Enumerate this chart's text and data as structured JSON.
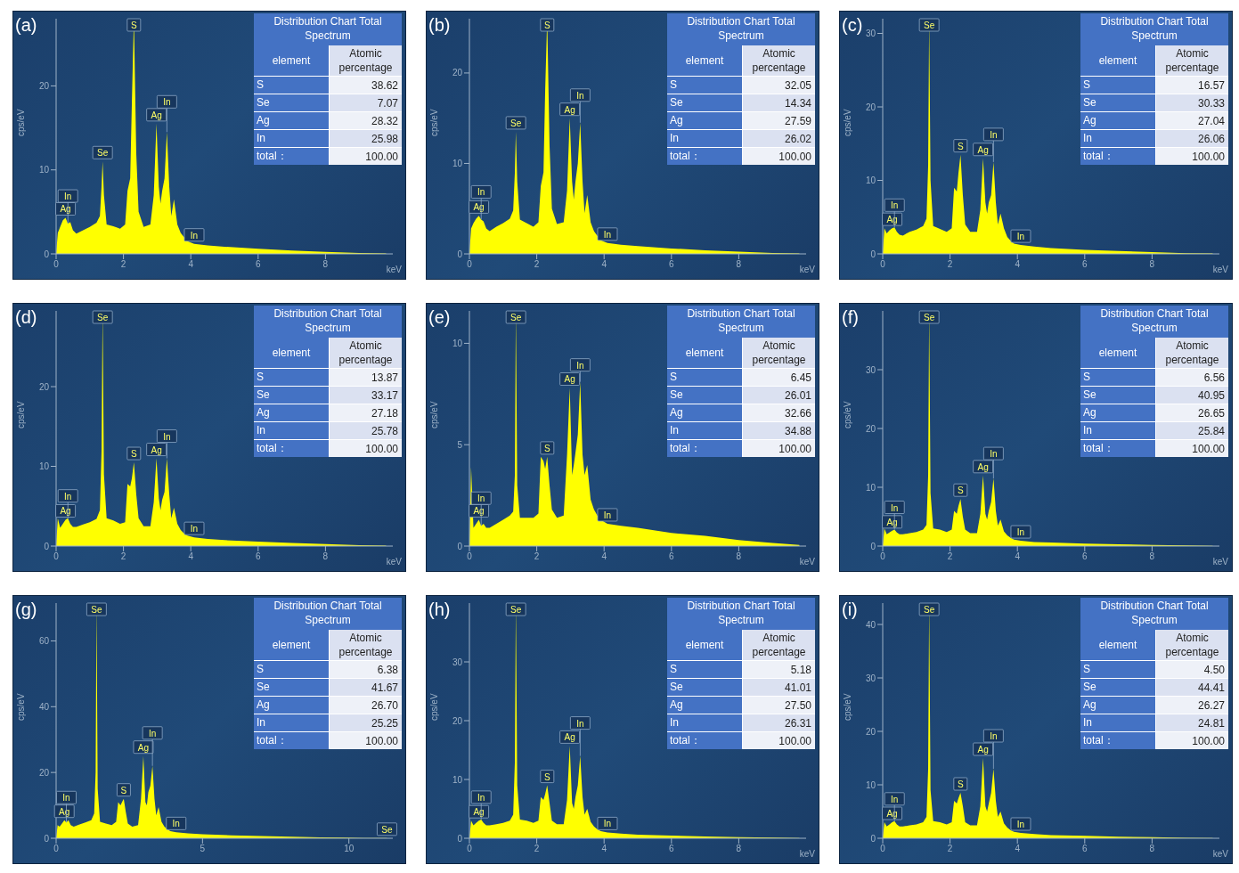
{
  "chart_data": [
    {
      "type": "area",
      "title": "(a)",
      "ylabel": "cps/eV",
      "xlabel": "keV",
      "color": "#ffff00",
      "xlim": [
        0,
        10
      ],
      "xticks": [
        0,
        2,
        4,
        6,
        8
      ],
      "ylim": [
        0,
        28
      ],
      "yticks": [
        0,
        10,
        20
      ],
      "x": [
        0,
        0.05,
        0.12,
        0.2,
        0.28,
        0.35,
        0.42,
        0.5,
        0.6,
        0.8,
        1.0,
        1.2,
        1.3,
        1.35,
        1.38,
        1.42,
        1.5,
        1.7,
        1.9,
        2.05,
        2.12,
        2.2,
        2.25,
        2.31,
        2.38,
        2.45,
        2.6,
        2.8,
        2.9,
        2.98,
        3.05,
        3.1,
        3.15,
        3.22,
        3.29,
        3.36,
        3.42,
        3.5,
        3.6,
        3.7,
        3.8,
        3.9,
        4.1,
        4.5,
        5,
        6,
        7,
        8,
        9,
        9.8
      ],
      "values": [
        0,
        2.5,
        3.2,
        4,
        4.3,
        3.6,
        3.8,
        2.8,
        2.4,
        2.8,
        3.2,
        3.7,
        4.5,
        8,
        11,
        7,
        3.5,
        3.3,
        3,
        3.5,
        7.5,
        9,
        18,
        28,
        12,
        5,
        3.2,
        3.5,
        7,
        15.5,
        8,
        6,
        7.5,
        9,
        14.5,
        8,
        4.5,
        6.5,
        3.5,
        2.5,
        2,
        1.5,
        1.2,
        1,
        0.85,
        0.6,
        0.4,
        0.25,
        0.1,
        0.05
      ],
      "annotations": [
        "Distribution Chart Total Spectrum",
        "element",
        "Atomic percentage",
        "S",
        "38.62",
        "Se",
        "7.07",
        "Ag",
        "28.32",
        "In",
        "25.98",
        "total：",
        "100.00",
        {
          "text": "Ag",
          "x": 0.28,
          "y": 4.3
        },
        {
          "text": "In",
          "x": 0.35,
          "y": 3.6
        },
        {
          "text": "Se",
          "x": 1.38,
          "y": 11
        },
        {
          "text": "S",
          "x": 2.31,
          "y": 28
        },
        {
          "text": "Ag",
          "x": 2.98,
          "y": 15.5
        },
        {
          "text": "In",
          "x": 3.29,
          "y": 14.5
        },
        {
          "text": "In",
          "x": 4.1,
          "y": 1.2
        }
      ]
    },
    {
      "type": "area",
      "title": "(b)",
      "ylabel": "cps/eV",
      "xlabel": "keV",
      "color": "#ffff00",
      "xlim": [
        0,
        10
      ],
      "xticks": [
        0,
        2,
        4,
        6,
        8
      ],
      "ylim": [
        0,
        26
      ],
      "yticks": [
        0,
        10,
        20
      ],
      "x": [
        0,
        0.05,
        0.12,
        0.2,
        0.28,
        0.35,
        0.42,
        0.5,
        0.6,
        0.8,
        1.0,
        1.2,
        1.3,
        1.35,
        1.38,
        1.42,
        1.5,
        1.7,
        1.9,
        2.05,
        2.12,
        2.2,
        2.25,
        2.31,
        2.38,
        2.45,
        2.6,
        2.8,
        2.9,
        2.98,
        3.05,
        3.1,
        3.15,
        3.22,
        3.29,
        3.36,
        3.42,
        3.5,
        3.6,
        3.7,
        3.8,
        3.9,
        4.1,
        4.5,
        5,
        6,
        7,
        8,
        9,
        9.8
      ],
      "values": [
        0,
        2.8,
        3.4,
        3.9,
        4.2,
        3.8,
        3.6,
        2.8,
        2.5,
        3,
        3.4,
        3.9,
        4.8,
        9,
        13.5,
        8,
        3.8,
        3.4,
        3,
        3.5,
        7.5,
        9,
        18,
        26,
        12,
        5,
        3.3,
        3.5,
        7,
        15,
        8,
        6,
        8,
        10,
        14.5,
        8,
        4.5,
        6.5,
        3.5,
        2.5,
        2,
        1.5,
        1.2,
        1,
        0.85,
        0.6,
        0.4,
        0.25,
        0.1,
        0.05
      ],
      "annotations": [
        "Distribution Chart Total Spectrum",
        "element",
        "Atomic percentage",
        "S",
        "32.05",
        "Se",
        "14.34",
        "Ag",
        "27.59",
        "In",
        "26.02",
        "total：",
        "100.00",
        {
          "text": "Ag",
          "x": 0.28,
          "y": 4.2
        },
        {
          "text": "In",
          "x": 0.35,
          "y": 3.8
        },
        {
          "text": "Se",
          "x": 1.38,
          "y": 13.5
        },
        {
          "text": "S",
          "x": 2.31,
          "y": 26
        },
        {
          "text": "Ag",
          "x": 2.98,
          "y": 15
        },
        {
          "text": "In",
          "x": 3.29,
          "y": 14.5
        },
        {
          "text": "In",
          "x": 4.1,
          "y": 1.2
        }
      ]
    },
    {
      "type": "area",
      "title": "(c)",
      "ylabel": "cps/eV",
      "xlabel": "keV",
      "color": "#ffff00",
      "xlim": [
        0,
        10
      ],
      "xticks": [
        0,
        2,
        4,
        6,
        8
      ],
      "ylim": [
        0,
        32
      ],
      "yticks": [
        0,
        10,
        20,
        30
      ],
      "x": [
        0,
        0.05,
        0.12,
        0.2,
        0.28,
        0.35,
        0.42,
        0.5,
        0.6,
        0.8,
        1.0,
        1.2,
        1.3,
        1.35,
        1.38,
        1.42,
        1.5,
        1.7,
        1.9,
        2.05,
        2.12,
        2.2,
        2.25,
        2.31,
        2.38,
        2.45,
        2.6,
        2.8,
        2.9,
        2.98,
        3.05,
        3.1,
        3.15,
        3.22,
        3.29,
        3.36,
        3.42,
        3.5,
        3.6,
        3.7,
        3.8,
        3.9,
        4.1,
        4.5,
        5,
        6,
        7,
        8,
        9,
        9.8
      ],
      "values": [
        0,
        3.5,
        2.8,
        3.2,
        3.5,
        3.6,
        3,
        2.6,
        2.5,
        3,
        3.3,
        3.8,
        4.8,
        12,
        32,
        10,
        3.8,
        3.4,
        3,
        3.5,
        9,
        8.5,
        11,
        13.5,
        8,
        4,
        3,
        3,
        6,
        13,
        7,
        5.5,
        7,
        8,
        12.5,
        7,
        4,
        5.5,
        3.5,
        2.3,
        1.8,
        1.4,
        1.2,
        1,
        0.8,
        0.55,
        0.4,
        0.25,
        0.1,
        0.05
      ],
      "annotations": [
        "Distribution Chart Total Spectrum",
        "element",
        "Atomic percentage",
        "S",
        "16.57",
        "Se",
        "30.33",
        "Ag",
        "27.04",
        "In",
        "26.06",
        "total：",
        "100.00",
        {
          "text": "Ag",
          "x": 0.28,
          "y": 3.5
        },
        {
          "text": "In",
          "x": 0.35,
          "y": 3.6
        },
        {
          "text": "Se",
          "x": 1.38,
          "y": 32
        },
        {
          "text": "S",
          "x": 2.31,
          "y": 13.5
        },
        {
          "text": "Ag",
          "x": 2.98,
          "y": 13
        },
        {
          "text": "In",
          "x": 3.29,
          "y": 12.5
        },
        {
          "text": "In",
          "x": 4.1,
          "y": 1.2
        }
      ]
    },
    {
      "type": "area",
      "title": "(d)",
      "ylabel": "cps/eV",
      "xlabel": "keV",
      "color": "#ffff00",
      "xlim": [
        0,
        10
      ],
      "xticks": [
        0,
        2,
        4,
        6,
        8
      ],
      "ylim": [
        0,
        29.5
      ],
      "yticks": [
        0,
        10,
        20
      ],
      "x": [
        0,
        0.05,
        0.12,
        0.2,
        0.28,
        0.35,
        0.42,
        0.5,
        0.6,
        0.8,
        1.0,
        1.2,
        1.3,
        1.35,
        1.38,
        1.42,
        1.5,
        1.7,
        1.9,
        2.05,
        2.12,
        2.2,
        2.25,
        2.31,
        2.38,
        2.45,
        2.6,
        2.8,
        2.9,
        2.98,
        3.05,
        3.1,
        3.15,
        3.22,
        3.29,
        3.36,
        3.42,
        3.5,
        3.6,
        3.7,
        3.8,
        3.9,
        4.1,
        4.5,
        5,
        6,
        7,
        8,
        9,
        9.8
      ],
      "values": [
        0,
        3.5,
        2.3,
        2.8,
        3.3,
        3.5,
        2.8,
        2.4,
        2.4,
        2.7,
        3,
        3.4,
        4.5,
        12,
        29.5,
        9,
        3.5,
        3.2,
        2.8,
        3,
        7.8,
        7.5,
        8.5,
        10.5,
        6.5,
        3.5,
        2.5,
        2.5,
        5.5,
        11,
        6,
        4.5,
        5.8,
        6.8,
        11,
        6.5,
        3.5,
        4.8,
        2.8,
        2,
        1.6,
        1.3,
        1.1,
        0.9,
        0.75,
        0.55,
        0.4,
        0.25,
        0.1,
        0.05
      ],
      "annotations": [
        "Distribution Chart Total Spectrum",
        "element",
        "Atomic percentage",
        "S",
        "13.87",
        "Se",
        "33.17",
        "Ag",
        "27.18",
        "In",
        "25.78",
        "total：",
        "100.00",
        {
          "text": "Ag",
          "x": 0.28,
          "y": 3.3
        },
        {
          "text": "In",
          "x": 0.35,
          "y": 3.5
        },
        {
          "text": "Se",
          "x": 1.38,
          "y": 29.5
        },
        {
          "text": "S",
          "x": 2.31,
          "y": 10.5
        },
        {
          "text": "Ag",
          "x": 2.98,
          "y": 11
        },
        {
          "text": "In",
          "x": 3.29,
          "y": 11
        },
        {
          "text": "In",
          "x": 4.1,
          "y": 1.1
        }
      ]
    },
    {
      "type": "area",
      "title": "(e)",
      "ylabel": "cps/eV",
      "xlabel": "keV",
      "color": "#ffff00",
      "xlim": [
        0,
        10
      ],
      "xticks": [
        0,
        2,
        4,
        6,
        8
      ],
      "ylim": [
        0,
        11.6
      ],
      "yticks": [
        0,
        5,
        10
      ],
      "x": [
        0,
        0.05,
        0.12,
        0.2,
        0.28,
        0.35,
        0.42,
        0.5,
        0.6,
        0.8,
        1.0,
        1.2,
        1.3,
        1.35,
        1.38,
        1.42,
        1.5,
        1.7,
        1.9,
        2.05,
        2.12,
        2.2,
        2.25,
        2.31,
        2.38,
        2.45,
        2.6,
        2.8,
        2.9,
        2.98,
        3.05,
        3.1,
        3.15,
        3.22,
        3.29,
        3.36,
        3.42,
        3.5,
        3.6,
        3.7,
        3.8,
        3.9,
        4.1,
        4.5,
        5,
        6,
        7,
        8,
        9,
        9.8
      ],
      "values": [
        0,
        3.9,
        0.9,
        1.1,
        1.3,
        1,
        1.1,
        0.9,
        0.9,
        1.1,
        1.3,
        1.5,
        1.7,
        3.5,
        11.6,
        3,
        1.4,
        1.4,
        1.4,
        1.6,
        4.4,
        4.2,
        3.8,
        4.4,
        3,
        1.8,
        1.4,
        1.5,
        4.5,
        7.8,
        3.5,
        4,
        4.6,
        5.5,
        8.1,
        4.5,
        3.5,
        4,
        2.3,
        1.8,
        1.5,
        1.3,
        1.1,
        1,
        0.9,
        0.65,
        0.5,
        0.3,
        0.15,
        0.05
      ],
      "annotations": [
        "Distribution Chart Total Spectrum",
        "element",
        "Atomic percentage",
        "S",
        "6.45",
        "Se",
        "26.01",
        "Ag",
        "32.66",
        "In",
        "34.88",
        "total：",
        "100.00",
        {
          "text": "Ag",
          "x": 0.28,
          "y": 1.3
        },
        {
          "text": "In",
          "x": 0.35,
          "y": 1
        },
        {
          "text": "Se",
          "x": 1.38,
          "y": 11.6
        },
        {
          "text": "S",
          "x": 2.31,
          "y": 4.4
        },
        {
          "text": "Ag",
          "x": 2.98,
          "y": 7.8
        },
        {
          "text": "In",
          "x": 3.29,
          "y": 8.1
        },
        {
          "text": "In",
          "x": 4.1,
          "y": 1.1
        }
      ]
    },
    {
      "type": "area",
      "title": "(f)",
      "ylabel": "cps/eV",
      "xlabel": "keV",
      "color": "#ffff00",
      "xlim": [
        0,
        10
      ],
      "xticks": [
        0,
        2,
        4,
        6,
        8
      ],
      "ylim": [
        0,
        40
      ],
      "yticks": [
        0,
        10,
        20,
        30
      ],
      "x": [
        0,
        0.05,
        0.12,
        0.2,
        0.28,
        0.35,
        0.42,
        0.5,
        0.6,
        0.8,
        1.0,
        1.2,
        1.3,
        1.35,
        1.38,
        1.42,
        1.5,
        1.7,
        1.9,
        2.05,
        2.12,
        2.2,
        2.25,
        2.31,
        2.38,
        2.45,
        2.6,
        2.8,
        2.9,
        2.98,
        3.05,
        3.1,
        3.15,
        3.22,
        3.29,
        3.36,
        3.42,
        3.5,
        3.6,
        3.7,
        3.8,
        3.9,
        4.1,
        4.5,
        5,
        6,
        7,
        8,
        9,
        9.8
      ],
      "values": [
        0,
        3,
        2,
        2.3,
        2.6,
        2.8,
        2.3,
        2,
        2,
        2.2,
        2.4,
        2.8,
        3.6,
        12,
        40,
        9,
        3,
        2.8,
        2.4,
        2.8,
        6,
        5.5,
        6.8,
        8,
        5,
        2.8,
        2.2,
        2.2,
        5.5,
        12,
        5.5,
        4.5,
        6,
        7.5,
        11.5,
        6,
        3.5,
        4.5,
        2.5,
        1.8,
        1.4,
        1.1,
        0.9,
        0.7,
        0.6,
        0.4,
        0.3,
        0.2,
        0.1,
        0.05
      ],
      "annotations": [
        "Distribution Chart Total Spectrum",
        "element",
        "Atomic percentage",
        "S",
        "6.56",
        "Se",
        "40.95",
        "Ag",
        "26.65",
        "In",
        "25.84",
        "total：",
        "100.00",
        {
          "text": "Ag",
          "x": 0.28,
          "y": 2.6
        },
        {
          "text": "In",
          "x": 0.35,
          "y": 2.8
        },
        {
          "text": "Se",
          "x": 1.38,
          "y": 40
        },
        {
          "text": "S",
          "x": 2.31,
          "y": 8
        },
        {
          "text": "Ag",
          "x": 2.98,
          "y": 12
        },
        {
          "text": "In",
          "x": 3.29,
          "y": 11.5
        },
        {
          "text": "In",
          "x": 4.1,
          "y": 0.9
        }
      ]
    },
    {
      "type": "area",
      "title": "(g)",
      "ylabel": "cps/eV",
      "color": "#ffff00",
      "xlim": [
        0,
        11.5
      ],
      "xticks": [
        0,
        5,
        10
      ],
      "ylim": [
        0,
        71.5
      ],
      "yticks": [
        0,
        20,
        40,
        60
      ],
      "x": [
        0,
        0.05,
        0.12,
        0.2,
        0.28,
        0.35,
        0.42,
        0.5,
        0.6,
        0.8,
        1.0,
        1.2,
        1.3,
        1.35,
        1.38,
        1.42,
        1.5,
        1.7,
        1.9,
        2.05,
        2.12,
        2.2,
        2.25,
        2.31,
        2.38,
        2.45,
        2.6,
        2.8,
        2.9,
        2.98,
        3.05,
        3.1,
        3.15,
        3.22,
        3.29,
        3.36,
        3.42,
        3.5,
        3.6,
        3.7,
        3.8,
        3.9,
        4.1,
        4.5,
        5,
        6,
        7,
        8,
        9,
        9.8,
        10.5,
        11.3
      ],
      "values": [
        0,
        4,
        3.5,
        4.5,
        5.5,
        4.8,
        5.5,
        4,
        3.5,
        4.2,
        4.8,
        5.5,
        7.5,
        20,
        71.5,
        15,
        5,
        4.5,
        4,
        5,
        11,
        10,
        11,
        12,
        8,
        4.5,
        3.5,
        4,
        12,
        25,
        11,
        10,
        14,
        16,
        22,
        12,
        7,
        9.5,
        5,
        3.5,
        2.8,
        2.2,
        1.8,
        1.5,
        1.2,
        0.9,
        0.7,
        0.5,
        0.3,
        0.2,
        0.1,
        0.05
      ],
      "annotations": [
        "Distribution Chart Total Spectrum",
        "element",
        "Atomic percentage",
        "S",
        "6.38",
        "Se",
        "41.67",
        "Ag",
        "26.70",
        "In",
        "25.25",
        "total：",
        "100.00",
        {
          "text": "Ag",
          "x": 0.28,
          "y": 5.5
        },
        {
          "text": "In",
          "x": 0.35,
          "y": 4.8
        },
        {
          "text": "Se",
          "x": 1.38,
          "y": 71.5
        },
        {
          "text": "S",
          "x": 2.31,
          "y": 12
        },
        {
          "text": "Ag",
          "x": 2.98,
          "y": 25
        },
        {
          "text": "In",
          "x": 3.29,
          "y": 22
        },
        {
          "text": "In",
          "x": 4.1,
          "y": 1.8
        },
        {
          "text": "Se",
          "x": 11.3,
          "y": 0.05
        }
      ]
    },
    {
      "type": "area",
      "title": "(h)",
      "ylabel": "cps/eV",
      "xlabel": "keV",
      "color": "#ffff00",
      "xlim": [
        0,
        10
      ],
      "xticks": [
        0,
        2,
        4,
        6,
        8
      ],
      "ylim": [
        0,
        40
      ],
      "yticks": [
        0,
        10,
        20,
        30
      ],
      "x": [
        0,
        0.05,
        0.12,
        0.2,
        0.28,
        0.35,
        0.42,
        0.5,
        0.6,
        0.8,
        1.0,
        1.2,
        1.3,
        1.35,
        1.38,
        1.42,
        1.5,
        1.7,
        1.9,
        2.05,
        2.12,
        2.2,
        2.25,
        2.31,
        2.38,
        2.45,
        2.6,
        2.8,
        2.9,
        2.98,
        3.05,
        3.1,
        3.15,
        3.22,
        3.29,
        3.36,
        3.42,
        3.5,
        3.6,
        3.7,
        3.8,
        3.9,
        4.1,
        4.5,
        5,
        6,
        7,
        8,
        9,
        9.8
      ],
      "values": [
        0,
        3,
        2.2,
        2.6,
        3,
        3.2,
        2.6,
        2.2,
        2.2,
        2.4,
        2.6,
        3,
        4,
        13,
        40,
        9,
        3.2,
        3,
        2.6,
        3,
        7,
        6.5,
        7.5,
        9,
        6,
        3,
        2.4,
        2.4,
        6.5,
        15.7,
        6,
        5,
        7,
        9,
        14,
        7,
        4,
        5,
        2.8,
        2,
        1.5,
        1.2,
        1,
        0.8,
        0.6,
        0.45,
        0.3,
        0.2,
        0.1,
        0.05
      ],
      "annotations": [
        "Distribution Chart Total Spectrum",
        "element",
        "Atomic percentage",
        "S",
        "5.18",
        "Se",
        "41.01",
        "Ag",
        "27.50",
        "In",
        "26.31",
        "total：",
        "100.00",
        {
          "text": "Ag",
          "x": 0.28,
          "y": 3
        },
        {
          "text": "In",
          "x": 0.35,
          "y": 3.2
        },
        {
          "text": "Se",
          "x": 1.38,
          "y": 40
        },
        {
          "text": "S",
          "x": 2.31,
          "y": 9
        },
        {
          "text": "Ag",
          "x": 2.98,
          "y": 15.7
        },
        {
          "text": "In",
          "x": 3.29,
          "y": 14
        },
        {
          "text": "In",
          "x": 4.1,
          "y": 1
        }
      ]
    },
    {
      "type": "area",
      "title": "(i)",
      "ylabel": "cps/eV",
      "xlabel": "keV",
      "color": "#ffff00",
      "xlim": [
        0,
        10
      ],
      "xticks": [
        0,
        2,
        4,
        6,
        8
      ],
      "ylim": [
        0,
        44
      ],
      "yticks": [
        0,
        10,
        20,
        30,
        40
      ],
      "x": [
        0,
        0.05,
        0.12,
        0.2,
        0.28,
        0.35,
        0.42,
        0.5,
        0.6,
        0.8,
        1.0,
        1.2,
        1.3,
        1.35,
        1.38,
        1.42,
        1.5,
        1.7,
        1.9,
        2.05,
        2.12,
        2.2,
        2.25,
        2.31,
        2.38,
        2.45,
        2.6,
        2.8,
        2.9,
        2.98,
        3.05,
        3.1,
        3.15,
        3.22,
        3.29,
        3.36,
        3.42,
        3.5,
        3.6,
        3.7,
        3.8,
        3.9,
        4.1,
        4.5,
        5,
        6,
        7,
        8,
        9,
        9.8
      ],
      "values": [
        0,
        3,
        2.2,
        2.6,
        3,
        3.2,
        2.6,
        2.2,
        2.2,
        2.4,
        2.6,
        3,
        4,
        13,
        44,
        9,
        3.2,
        3,
        2.6,
        3,
        7,
        6.5,
        7.5,
        8.5,
        6,
        3,
        2.4,
        2.4,
        6,
        15,
        6,
        5,
        6.5,
        8.5,
        13,
        7,
        4,
        5,
        2.8,
        2,
        1.5,
        1.2,
        1,
        0.8,
        0.6,
        0.45,
        0.3,
        0.2,
        0.1,
        0.05
      ],
      "annotations": [
        "Distribution Chart Total Spectrum",
        "element",
        "Atomic percentage",
        "S",
        "4.50",
        "Se",
        "44.41",
        "Ag",
        "26.27",
        "In",
        "24.81",
        "total：",
        "100.00",
        {
          "text": "Ag",
          "x": 0.28,
          "y": 3
        },
        {
          "text": "In",
          "x": 0.35,
          "y": 3.2
        },
        {
          "text": "Se",
          "x": 1.38,
          "y": 44
        },
        {
          "text": "S",
          "x": 2.31,
          "y": 8.5
        },
        {
          "text": "Ag",
          "x": 2.98,
          "y": 15
        },
        {
          "text": "In",
          "x": 3.29,
          "y": 13
        },
        {
          "text": "In",
          "x": 4.1,
          "y": 1
        }
      ]
    }
  ]
}
